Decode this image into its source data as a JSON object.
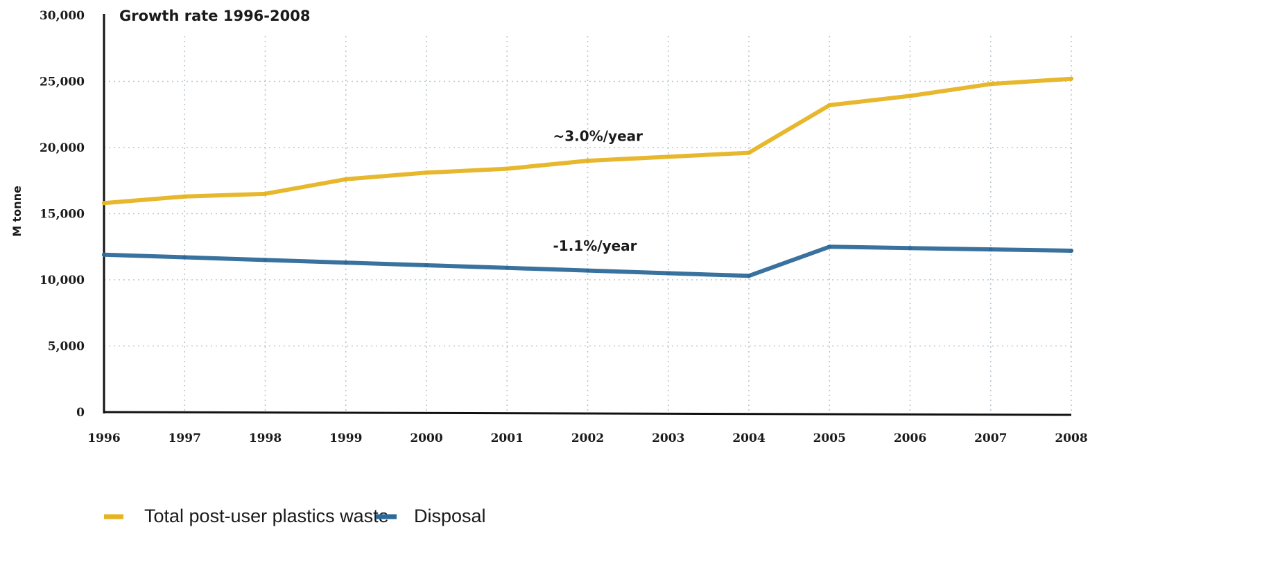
{
  "chart_data": {
    "type": "line",
    "title": "Growth rate 1996-2008",
    "xlabel": "",
    "ylabel": "M tonne",
    "x": [
      "1996",
      "1997",
      "1998",
      "1999",
      "2000",
      "2001",
      "2002",
      "2003",
      "2004",
      "2005",
      "2006",
      "2007",
      "2008"
    ],
    "ylim": [
      0,
      30000
    ],
    "yticks": [
      0,
      5000,
      10000,
      15000,
      20000,
      25000,
      30000
    ],
    "ytick_labels": [
      "0",
      "5,000",
      "10,000",
      "15,000",
      "20,000",
      "25,000",
      "30,000"
    ],
    "grid": true,
    "legend_position": "bottom-left",
    "series": [
      {
        "name": "Total post-user plastics waste",
        "color": "#e6b422",
        "values": [
          15800,
          16300,
          16500,
          17600,
          18100,
          18400,
          19000,
          19300,
          19600,
          23200,
          23900,
          24800,
          25200
        ]
      },
      {
        "name": "Disposal",
        "color": "#2e6a99",
        "values": [
          11900,
          11700,
          11500,
          11300,
          11100,
          10900,
          10700,
          10500,
          10300,
          12500,
          12400,
          12300,
          12200
        ]
      }
    ],
    "annotations": [
      {
        "text": "~3.0%/year",
        "x": "2002",
        "y": 20500
      },
      {
        "text": "-1.1%/year",
        "x": "2002",
        "y": 12200
      }
    ]
  }
}
